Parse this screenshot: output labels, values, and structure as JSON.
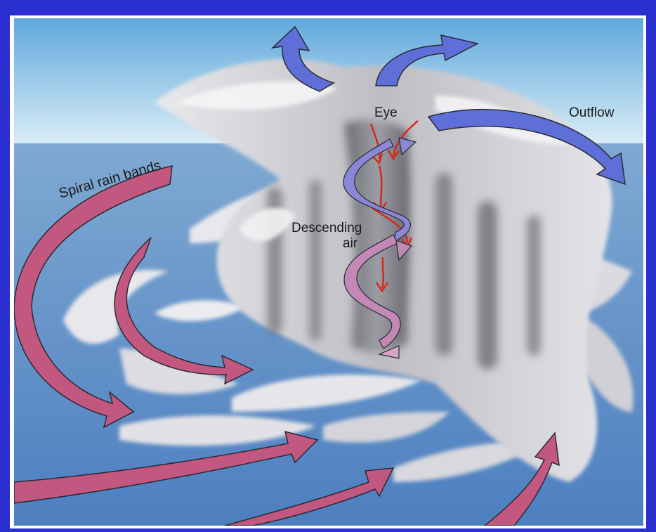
{
  "labels": {
    "spiral_rain_bands": "Spiral rain bands",
    "eye": "Eye",
    "outflow": "Outflow",
    "descending": "Descending",
    "air": "air"
  },
  "colors": {
    "frame": "#2b2fd0",
    "sky_top": "#5fa8dc",
    "sky_horizon": "#dceef7",
    "sea_top": "#7fa9d2",
    "sea_bottom": "#4d7fc0",
    "cloud_light": "#f2f2f2",
    "cloud_shadow": "#6e6e74",
    "inflow_arrow": "#c2577f",
    "outflow_arrow": "#5f6fd8",
    "eye_arrow": "#d42a1c",
    "arrow_stroke": "#2a2a33"
  }
}
